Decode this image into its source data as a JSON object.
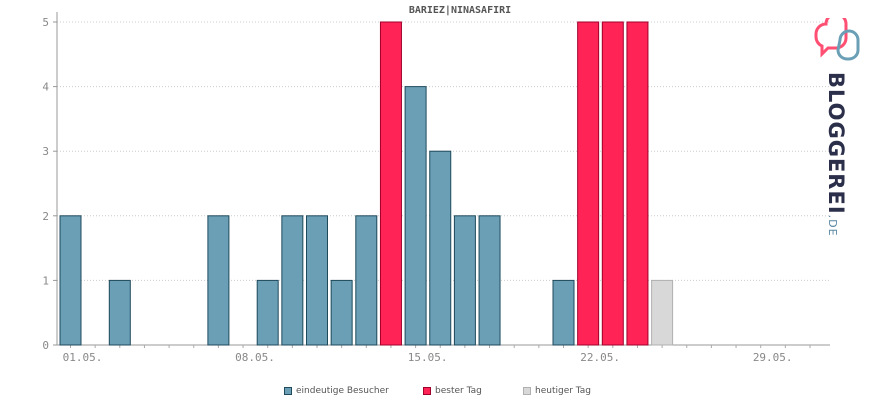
{
  "chart_data": {
    "type": "bar",
    "title": "BARIEZ|NINASAFIRI",
    "x_tick_labels": [
      "01.05.",
      "08.05.",
      "15.05.",
      "22.05.",
      "29.05."
    ],
    "days": [
      1,
      2,
      3,
      4,
      5,
      6,
      7,
      8,
      9,
      10,
      11,
      12,
      13,
      14,
      15,
      16,
      17,
      18,
      19,
      20,
      21,
      22,
      23,
      24,
      25,
      26,
      27,
      28,
      29,
      30,
      31
    ],
    "values": [
      2,
      0,
      1,
      0,
      0,
      0,
      2,
      0,
      1,
      2,
      2,
      1,
      2,
      5,
      4,
      3,
      2,
      2,
      0,
      0,
      1,
      5,
      5,
      5,
      1,
      0,
      0,
      0,
      0,
      0,
      0
    ],
    "bar_kind": [
      "v",
      "v",
      "v",
      "v",
      "v",
      "v",
      "v",
      "v",
      "v",
      "v",
      "v",
      "v",
      "v",
      "b",
      "v",
      "v",
      "v",
      "v",
      "v",
      "v",
      "v",
      "b",
      "b",
      "b",
      "t",
      "v",
      "v",
      "v",
      "v",
      "v",
      "v"
    ],
    "ylim": [
      0,
      5
    ],
    "y_ticks": [
      0,
      1,
      2,
      3,
      4,
      5
    ],
    "grid": true,
    "legend_position": "bottom",
    "legend": [
      {
        "key": "v",
        "label": "eindeutige Besucher",
        "color": "#6a9fb5",
        "stroke": "#1f4a5c"
      },
      {
        "key": "b",
        "label": "bester Tag",
        "color": "#ff2356",
        "stroke": "#a0002a"
      },
      {
        "key": "t",
        "label": "heutiger Tag",
        "color": "#d8d8d8",
        "stroke": "#b0b0b0"
      }
    ]
  },
  "logo": {
    "main": "BLOGGEREI",
    "suffix": ".DE"
  }
}
